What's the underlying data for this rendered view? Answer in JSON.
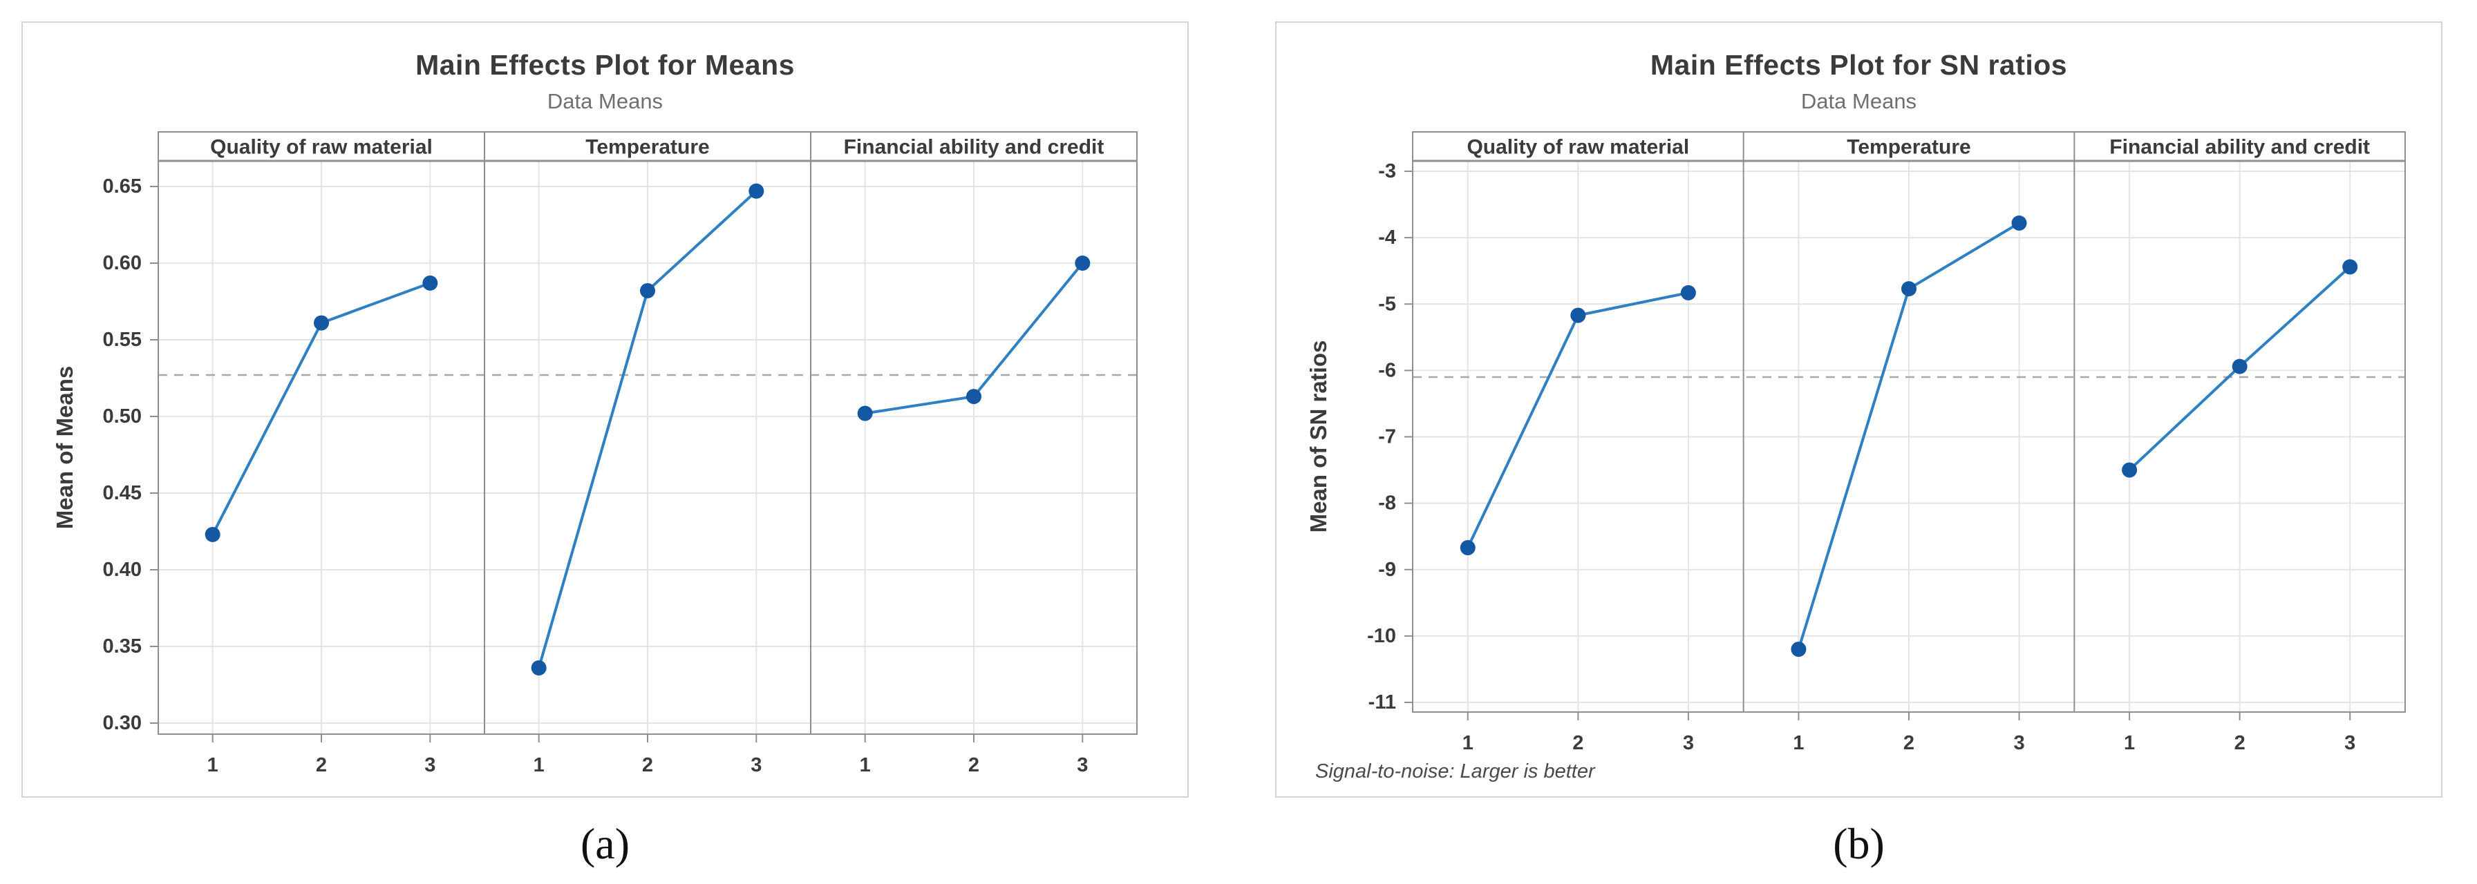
{
  "colors": {
    "series_line": "#2e80c3",
    "marker": "#1457a3",
    "gridline": "#e4e4e4",
    "frame": "#8f8f8f",
    "tick": "#8f8f8f",
    "mean_line": "#a8a8a8",
    "text": "#3b3b3b",
    "subtitle_text": "#6f6f6f",
    "card_border": "#d4d4d4"
  },
  "chart_data": [
    {
      "type": "line",
      "title": "Main Effects Plot for Means",
      "subtitle": "Data Means",
      "ylabel": "Mean of Means",
      "caption": "(a)",
      "footnote": "",
      "panels": [
        "Quality of raw material",
        "Temperature",
        "Financial ability and credit"
      ],
      "x_ticks": [
        "1",
        "2",
        "3"
      ],
      "y_tick_labels": [
        "0.65",
        "0.60",
        "0.55",
        "0.50",
        "0.45",
        "0.40",
        "0.35",
        "0.30"
      ],
      "y_tick_values": [
        0.65,
        0.6,
        0.55,
        0.5,
        0.45,
        0.4,
        0.35,
        0.3
      ],
      "ylim": [
        0.29,
        0.67
      ],
      "grid": "on",
      "legend": "none",
      "mean_line": 0.527,
      "series": [
        {
          "name": "Quality of raw material",
          "x": [
            1,
            2,
            3
          ],
          "values": [
            0.423,
            0.561,
            0.587
          ]
        },
        {
          "name": "Temperature",
          "x": [
            1,
            2,
            3
          ],
          "values": [
            0.336,
            0.582,
            0.647
          ]
        },
        {
          "name": "Financial ability and credit",
          "x": [
            1,
            2,
            3
          ],
          "values": [
            0.502,
            0.513,
            0.6
          ]
        }
      ]
    },
    {
      "type": "line",
      "title": "Main Effects Plot for SN ratios",
      "subtitle": "Data Means",
      "ylabel": "Mean of SN ratios",
      "caption": "(b)",
      "footnote": "Signal-to-noise: Larger is better",
      "panels": [
        "Quality of raw material",
        "Temperature",
        "Financial ability and credit"
      ],
      "x_ticks": [
        "1",
        "2",
        "3"
      ],
      "y_tick_labels": [
        "-3",
        "-4",
        "-5",
        "-6",
        "-7",
        "-8",
        "-9",
        "-10",
        "-11"
      ],
      "y_tick_values": [
        -3,
        -4,
        -5,
        -6,
        -7,
        -8,
        -9,
        -10,
        -11
      ],
      "ylim": [
        -11.1,
        -2.8
      ],
      "grid": "on",
      "legend": "none",
      "mean_line": -6.1,
      "series": [
        {
          "name": "Quality of raw material",
          "x": [
            1,
            2,
            3
          ],
          "values": [
            -8.67,
            -5.17,
            -4.83
          ]
        },
        {
          "name": "Temperature",
          "x": [
            1,
            2,
            3
          ],
          "values": [
            -10.2,
            -4.77,
            -3.78
          ]
        },
        {
          "name": "Financial ability and credit",
          "x": [
            1,
            2,
            3
          ],
          "values": [
            -7.5,
            -5.94,
            -4.44
          ]
        }
      ]
    }
  ]
}
